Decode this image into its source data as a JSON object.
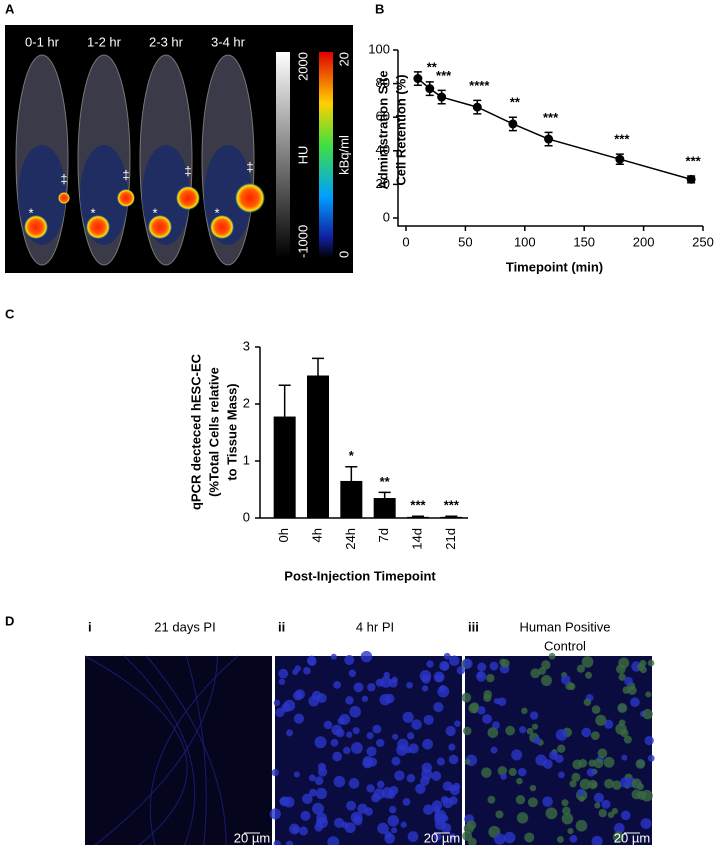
{
  "panels": {
    "labels": [
      "A",
      "B",
      "C",
      "D"
    ]
  },
  "image_a": {
    "frames": [
      "0-1 hr",
      "1-2 hr",
      "2-3 hr",
      "3-4 hr"
    ],
    "star": "*",
    "dagger": "‡",
    "hu_bar": {
      "max": "2000",
      "title": "HU",
      "min": "-1000"
    },
    "kbq_bar": {
      "max": "20",
      "title": "kBq/ml",
      "min": "0"
    }
  },
  "chart_data": [
    {
      "type": "line",
      "ylabel": [
        "Administration Site",
        "Cell Retention (%)"
      ],
      "xlabel": "Timepoint (min)",
      "x": [
        10,
        20,
        30,
        60,
        90,
        120,
        180,
        240
      ],
      "values": [
        83,
        77,
        72,
        66,
        56,
        47,
        35,
        23
      ],
      "errors": [
        4,
        4,
        4,
        4,
        4,
        4,
        3,
        2
      ],
      "annotations": [
        null,
        "**",
        "***",
        "****",
        "**",
        "***",
        "***",
        "***"
      ],
      "color": "#000000",
      "xlim": [
        0,
        250
      ],
      "xticks": [
        0,
        50,
        100,
        150,
        200,
        250
      ],
      "ylim": [
        0,
        100
      ],
      "yticks": [
        0,
        20,
        40,
        60,
        80,
        100
      ]
    },
    {
      "type": "bar",
      "ylabel": [
        "qPCR decteced hESC-EC",
        "(%Total Cells relative",
        "to Tissue Mass)"
      ],
      "xlabel": "Post-Injection Timepoint",
      "categories": [
        "0h",
        "4h",
        "24h",
        "7d",
        "14d",
        "21d"
      ],
      "values": [
        1.78,
        2.5,
        0.65,
        0.35,
        0.02,
        0.02
      ],
      "errors": [
        0.55,
        0.3,
        0.25,
        0.1,
        0.01,
        0.01
      ],
      "annotations": [
        null,
        null,
        "*",
        "**",
        "***",
        "***"
      ],
      "color": "#000000",
      "ylim": [
        0,
        3
      ],
      "yticks": [
        0,
        1,
        2,
        3
      ]
    }
  ],
  "panel_d": {
    "images": [
      {
        "numeral": "i",
        "title": [
          "21 days PI"
        ],
        "scale": "20 µm"
      },
      {
        "numeral": "ii",
        "title": [
          "4 hr PI"
        ],
        "scale": "20 µm"
      },
      {
        "numeral": "iii",
        "title": [
          "Human Positive",
          "Control"
        ],
        "scale": "20 µm"
      }
    ]
  }
}
